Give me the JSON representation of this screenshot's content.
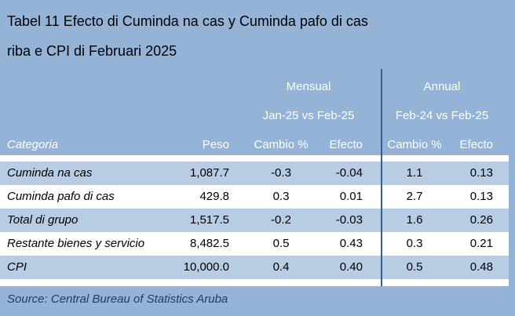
{
  "title_line1": "Tabel 11 Efecto di Cuminda na cas y Cuminda pafo di cas",
  "title_line2": "riba e CPI di Februari 2025",
  "colors": {
    "background": "#95b3d7",
    "band": "#b8cce4",
    "white": "#ffffff",
    "divider": "#366092"
  },
  "groups": [
    {
      "label": "Mensual",
      "period": "Jan-25 vs Feb-25"
    },
    {
      "label": "Annual",
      "period": "Feb-24 vs Feb-25"
    }
  ],
  "columns": [
    "Categoria",
    "Peso",
    "Cambio %",
    "Efecto",
    "Cambio %",
    "Efecto"
  ],
  "chart_data": {
    "type": "table",
    "title": "Tabel 11 Efecto di Cuminda na cas y Cuminda pafo di cas riba e CPI di Februari 2025",
    "columns": [
      "Categoria",
      "Peso",
      "Mensual Cambio %",
      "Mensual Efecto",
      "Annual Cambio %",
      "Annual Efecto"
    ],
    "rows": [
      [
        "Cuminda na cas",
        "1,087.7",
        "-0.3",
        "-0.04",
        "1.1",
        "0.13"
      ],
      [
        "Cuminda pafo di cas",
        "429.8",
        "0.3",
        "0.01",
        "2.7",
        "0.13"
      ],
      [
        "Total di grupo",
        "1,517.5",
        "-0.2",
        "-0.03",
        "1.6",
        "0.26"
      ],
      [
        "Restante bienes y servicio",
        "8,482.5",
        "0.5",
        "0.43",
        "0.3",
        "0.21"
      ],
      [
        "CPI",
        "10,000.0",
        "0.4",
        "0.40",
        "0.5",
        "0.48"
      ]
    ]
  },
  "source": "Source: Central Bureau of Statistics Aruba"
}
